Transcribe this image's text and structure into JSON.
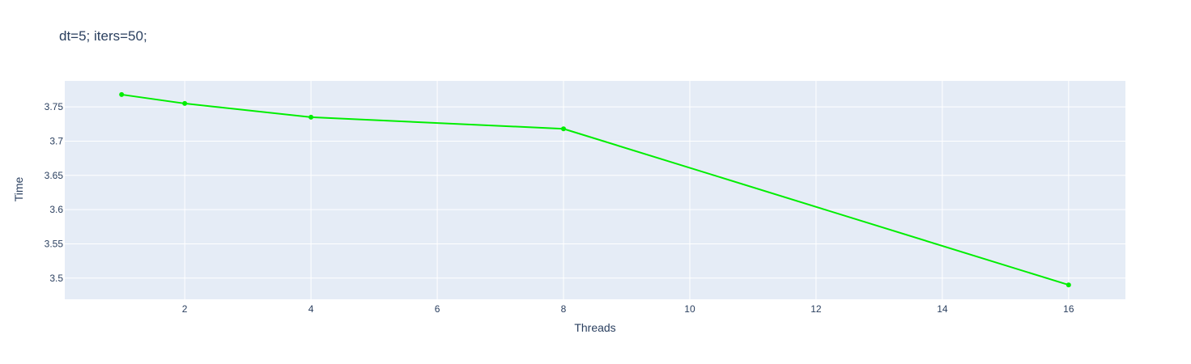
{
  "chart_data": {
    "type": "line",
    "title": "dt=5; iters=50;",
    "xlabel": "Threads",
    "ylabel": "Time",
    "xlim": [
      0.1,
      16.9
    ],
    "ylim": [
      3.469,
      3.788
    ],
    "x_ticks": [
      2,
      4,
      6,
      8,
      10,
      12,
      14,
      16
    ],
    "y_ticks": [
      3.5,
      3.55,
      3.6,
      3.65,
      3.7,
      3.75
    ],
    "y_tick_labels": [
      "3.5",
      "3.55",
      "3.6",
      "3.65",
      "3.7",
      "3.75"
    ],
    "grid": true,
    "legend": "none",
    "series": [
      {
        "x": [
          1,
          2,
          4,
          8,
          16
        ],
        "y": [
          3.768,
          3.755,
          3.735,
          3.718,
          3.49
        ],
        "color": "#00ee00",
        "mode": "lines+markers"
      }
    ]
  },
  "colors": {
    "plot_background": "#e5ecf6",
    "grid": "#ffffff",
    "text": "#2a3f5f",
    "line": "#00ee00"
  }
}
